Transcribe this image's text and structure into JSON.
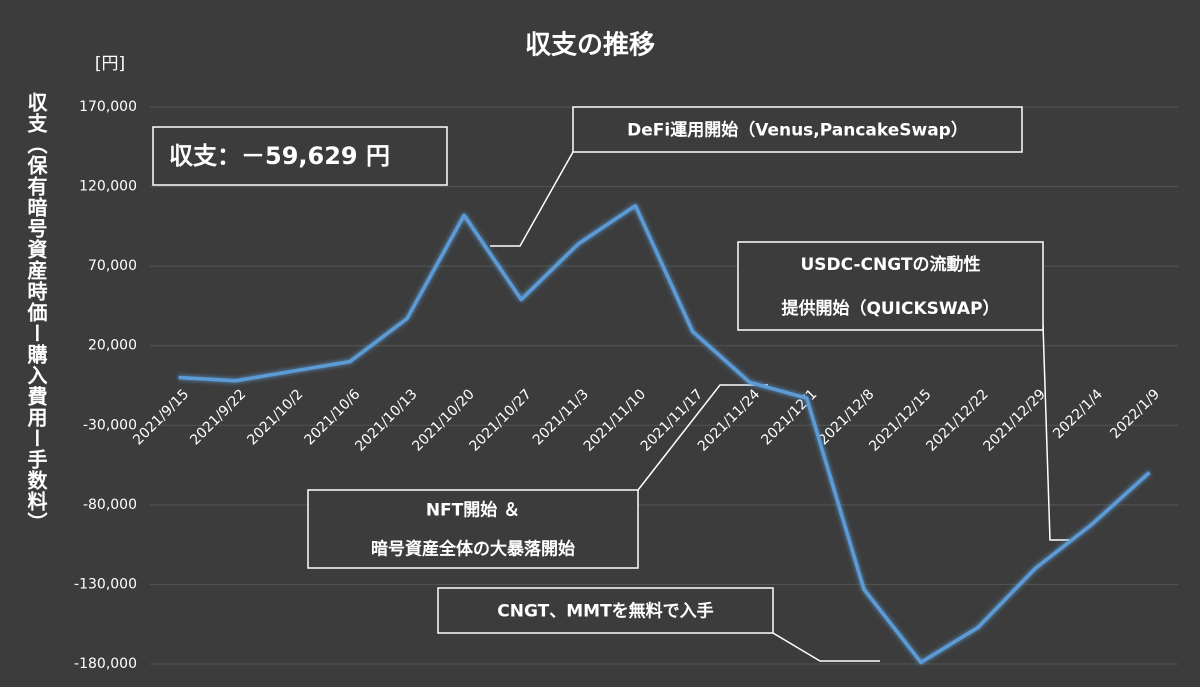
{
  "chart_data": {
    "type": "line",
    "title": "収支の推移",
    "y_label": "収支（保有暗号資産時価ー購入費用ー手数料）",
    "unit": "[円]",
    "categories": [
      "2021/9/15",
      "2021/9/22",
      "2021/10/2",
      "2021/10/6",
      "2021/10/13",
      "2021/10/20",
      "2021/10/27",
      "2021/11/3",
      "2021/11/10",
      "2021/11/17",
      "2021/11/24",
      "2021/12/1",
      "2021/12/8",
      "2021/12/15",
      "2021/12/22",
      "2021/12/29",
      "2022/1/4",
      "2022/1/9"
    ],
    "values": [
      0,
      -2000,
      4000,
      10000,
      37000,
      102000,
      49000,
      84000,
      108000,
      29000,
      -3000,
      -13000,
      -133000,
      -179000,
      -157000,
      -120000,
      -92000,
      -59629
    ],
    "color": "#5b9bd5",
    "ylim": [
      -180000,
      170000
    ],
    "yticks": [
      {
        "value": 170000,
        "label": "170,000"
      },
      {
        "value": 120000,
        "label": "120,000"
      },
      {
        "value": 70000,
        "label": "70,000"
      },
      {
        "value": 20000,
        "label": "20,000"
      },
      {
        "value": -30000,
        "label": "-30,000"
      },
      {
        "value": -80000,
        "label": "-80,000"
      },
      {
        "value": -130000,
        "label": "-130,000"
      },
      {
        "value": -180000,
        "label": "-180,000"
      }
    ],
    "negative_tick_color": "#e03030",
    "grid": true,
    "annotations": [
      {
        "lines": [
          "収支：－59,629 円"
        ]
      },
      {
        "lines": [
          "DeFi運用開始（Venus,PancakeSwap）"
        ]
      },
      {
        "lines": [
          "USDC-CNGTの流動性",
          "提供開始（QUICKSWAP）"
        ]
      },
      {
        "lines": [
          "NFT開始 ＆",
          "暗号資産全体の大暴落開始"
        ]
      },
      {
        "lines": [
          "CNGT、MMTを無料で入手"
        ]
      }
    ]
  }
}
